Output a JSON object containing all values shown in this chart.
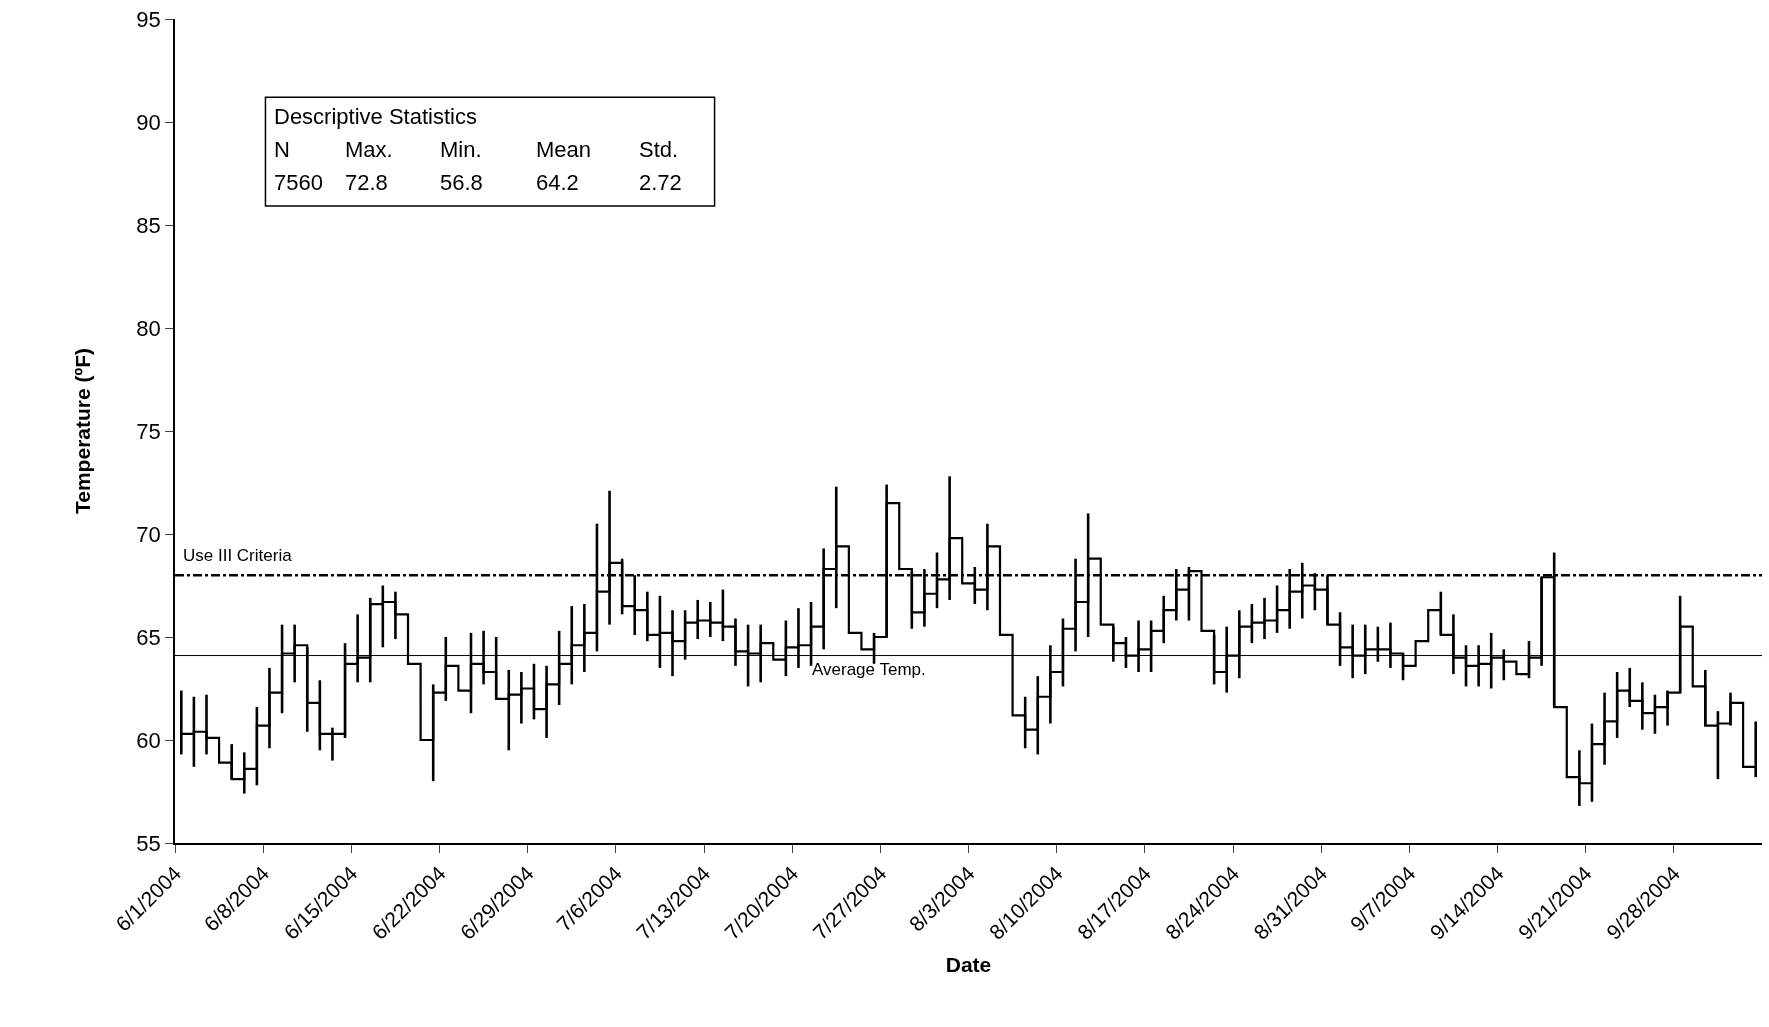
{
  "chart_data": {
    "type": "step",
    "xlabel": "Date",
    "ylabel": "Temperature (ºF)",
    "xlim": [
      "2004-06-01",
      "2004-10-05"
    ],
    "xticks": [
      {
        "value": "2004-06-01",
        "label": "6/1/2004"
      },
      {
        "value": "2004-06-08",
        "label": "6/8/2004"
      },
      {
        "value": "2004-06-15",
        "label": "6/15/2004"
      },
      {
        "value": "2004-06-22",
        "label": "6/22/2004"
      },
      {
        "value": "2004-06-29",
        "label": "6/29/2004"
      },
      {
        "value": "2004-07-06",
        "label": "7/6/2004"
      },
      {
        "value": "2004-07-13",
        "label": "7/13/2004"
      },
      {
        "value": "2004-07-20",
        "label": "7/20/2004"
      },
      {
        "value": "2004-07-27",
        "label": "7/27/2004"
      },
      {
        "value": "2004-08-03",
        "label": "8/3/2004"
      },
      {
        "value": "2004-08-10",
        "label": "8/10/2004"
      },
      {
        "value": "2004-08-17",
        "label": "8/17/2004"
      },
      {
        "value": "2004-08-24",
        "label": "8/24/2004"
      },
      {
        "value": "2004-08-31",
        "label": "8/31/2004"
      },
      {
        "value": "2004-09-07",
        "label": "9/7/2004"
      },
      {
        "value": "2004-09-14",
        "label": "9/14/2004"
      },
      {
        "value": "2004-09-21",
        "label": "9/21/2004"
      },
      {
        "value": "2004-09-28",
        "label": "9/28/2004"
      }
    ],
    "ylim": [
      55,
      95
    ],
    "yticks": [
      55,
      60,
      65,
      70,
      75,
      80,
      85,
      90,
      95
    ],
    "marker": "none",
    "line_style": "solid",
    "series": [
      {
        "color": "#000000",
        "x": [
          "2004-06-01T12:00",
          "2004-06-02T12:00",
          "2004-06-03T12:00",
          "2004-06-04T12:00",
          "2004-06-05T12:00",
          "2004-06-06T12:00",
          "2004-06-07T12:00",
          "2004-06-08T12:00",
          "2004-06-09T12:00",
          "2004-06-10T12:00",
          "2004-06-11T12:00",
          "2004-06-12T12:00",
          "2004-06-13T12:00",
          "2004-06-14T12:00",
          "2004-06-15T12:00",
          "2004-06-16T12:00",
          "2004-06-17T12:00",
          "2004-06-18T12:00",
          "2004-06-19T12:00",
          "2004-06-20T12:00",
          "2004-06-21T12:00",
          "2004-06-22T12:00",
          "2004-06-23T12:00",
          "2004-06-24T12:00",
          "2004-06-25T12:00",
          "2004-06-26T12:00",
          "2004-06-27T12:00",
          "2004-06-28T12:00",
          "2004-06-29T12:00",
          "2004-06-30T12:00",
          "2004-07-01T12:00",
          "2004-07-02T12:00",
          "2004-07-03T12:00",
          "2004-07-04T12:00",
          "2004-07-05T12:00",
          "2004-07-06T12:00",
          "2004-07-07T12:00",
          "2004-07-08T12:00",
          "2004-07-09T12:00",
          "2004-07-10T12:00",
          "2004-07-11T12:00",
          "2004-07-12T12:00",
          "2004-07-13T12:00",
          "2004-07-14T12:00",
          "2004-07-15T12:00",
          "2004-07-16T12:00",
          "2004-07-17T12:00",
          "2004-07-18T12:00",
          "2004-07-19T12:00",
          "2004-07-20T12:00",
          "2004-07-21T12:00",
          "2004-07-22T12:00",
          "2004-07-23T12:00",
          "2004-07-24T12:00",
          "2004-07-25T12:00",
          "2004-07-26T12:00",
          "2004-07-27T12:00",
          "2004-07-28T12:00",
          "2004-07-29T12:00",
          "2004-07-30T12:00",
          "2004-07-31T12:00",
          "2004-08-01T12:00",
          "2004-08-02T12:00",
          "2004-08-03T12:00",
          "2004-08-04T12:00",
          "2004-08-05T12:00",
          "2004-08-06T12:00",
          "2004-08-07T12:00",
          "2004-08-08T12:00",
          "2004-08-09T12:00",
          "2004-08-10T12:00",
          "2004-08-11T12:00",
          "2004-08-12T12:00",
          "2004-08-13T12:00",
          "2004-08-14T12:00",
          "2004-08-15T12:00",
          "2004-08-16T12:00",
          "2004-08-17T12:00",
          "2004-08-18T12:00",
          "2004-08-19T12:00",
          "2004-08-20T12:00",
          "2004-08-21T12:00",
          "2004-08-22T12:00",
          "2004-08-23T12:00",
          "2004-08-24T12:00",
          "2004-08-25T12:00",
          "2004-08-26T12:00",
          "2004-08-27T12:00",
          "2004-08-28T12:00",
          "2004-08-29T12:00",
          "2004-08-30T12:00",
          "2004-08-31T12:00",
          "2004-09-01T12:00",
          "2004-09-02T12:00",
          "2004-09-03T12:00",
          "2004-09-04T12:00",
          "2004-09-05T12:00",
          "2004-09-06T12:00",
          "2004-09-07T12:00",
          "2004-09-08T12:00",
          "2004-09-09T12:00",
          "2004-09-10T12:00",
          "2004-09-11T12:00",
          "2004-09-12T12:00",
          "2004-09-13T12:00",
          "2004-09-14T12:00",
          "2004-09-15T12:00",
          "2004-09-16T12:00",
          "2004-09-17T12:00",
          "2004-09-18T12:00",
          "2004-09-19T12:00",
          "2004-09-20T12:00",
          "2004-09-21T12:00",
          "2004-09-22T12:00",
          "2004-09-23T12:00",
          "2004-09-24T12:00",
          "2004-09-25T12:00",
          "2004-09-26T12:00",
          "2004-09-27T12:00",
          "2004-09-28T12:00",
          "2004-09-29T12:00",
          "2004-09-30T12:00",
          "2004-10-01T12:00",
          "2004-10-02T12:00",
          "2004-10-03T12:00",
          "2004-10-04T12:00"
        ],
        "values": [
          60.3,
          60.4,
          60.1,
          58.9,
          58.1,
          58.6,
          60.7,
          62.3,
          64.2,
          64.6,
          61.8,
          60.3,
          60.3,
          63.7,
          64.0,
          66.6,
          66.7,
          66.1,
          63.7,
          60.0,
          62.3,
          63.6,
          62.4,
          63.7,
          63.3,
          62.0,
          62.2,
          62.5,
          61.5,
          62.7,
          63.7,
          64.6,
          65.2,
          67.2,
          68.6,
          66.5,
          66.3,
          65.1,
          65.2,
          64.8,
          65.7,
          65.8,
          65.7,
          65.5,
          64.3,
          64.2,
          64.7,
          63.9,
          64.5,
          64.6,
          65.5,
          68.3,
          69.4,
          65.2,
          64.4,
          65.0,
          71.5,
          68.3,
          66.2,
          67.1,
          67.8,
          69.8,
          67.6,
          67.3,
          69.4,
          65.1,
          61.2,
          60.5,
          62.1,
          63.3,
          65.4,
          66.7,
          68.8,
          65.6,
          64.7,
          64.1,
          64.4,
          65.3,
          66.3,
          67.3,
          68.2,
          65.3,
          63.3,
          64.1,
          65.5,
          65.7,
          65.8,
          66.3,
          67.2,
          67.5,
          67.3,
          65.6,
          64.5,
          64.1,
          64.4,
          64.4,
          64.2,
          63.6,
          64.8,
          66.3,
          65.1,
          64.0,
          63.6,
          63.7,
          64.0,
          63.8,
          63.2,
          64.0,
          67.9,
          61.6,
          58.2,
          57.9,
          59.8,
          60.9,
          62.4,
          61.9,
          61.3,
          61.6,
          62.3,
          65.5,
          62.6,
          60.7,
          60.8,
          61.8,
          58.7,
          58.7
        ],
        "errors": [
          [
            59.3,
            62.4
          ],
          [
            58.7,
            62.1
          ],
          [
            59.3,
            62.2
          ],
          null,
          [
            58.1,
            59.8
          ],
          [
            57.4,
            59.4
          ],
          [
            57.8,
            61.6
          ],
          [
            59.6,
            63.5
          ],
          [
            61.3,
            65.6
          ],
          [
            62.8,
            65.6
          ],
          [
            60.4,
            64.5
          ],
          [
            59.5,
            62.9
          ],
          [
            59.0,
            60.6
          ],
          [
            60.1,
            64.7
          ],
          [
            62.8,
            66.1
          ],
          [
            62.8,
            66.9
          ],
          [
            64.5,
            67.5
          ],
          [
            64.9,
            67.2
          ],
          null,
          null,
          [
            58.0,
            62.7
          ],
          [
            61.9,
            65.0
          ],
          null,
          [
            61.3,
            65.2
          ],
          [
            62.7,
            65.3
          ],
          [
            62.0,
            65.0
          ],
          [
            59.5,
            63.4
          ],
          [
            60.8,
            63.3
          ],
          [
            61.0,
            63.7
          ],
          [
            60.1,
            63.6
          ],
          [
            61.7,
            65.3
          ],
          [
            62.7,
            66.5
          ],
          [
            63.3,
            66.6
          ],
          [
            64.3,
            70.5
          ],
          [
            65.6,
            72.1
          ],
          [
            66.1,
            68.8
          ],
          [
            65.1,
            68.0
          ],
          [
            64.8,
            67.2
          ],
          [
            63.5,
            67.0
          ],
          [
            63.1,
            66.3
          ],
          [
            63.9,
            66.3
          ],
          [
            64.9,
            66.8
          ],
          [
            65.0,
            66.7
          ],
          [
            64.8,
            67.3
          ],
          [
            63.6,
            65.9
          ],
          [
            62.6,
            65.6
          ],
          [
            62.8,
            65.6
          ],
          null,
          [
            63.1,
            65.8
          ],
          [
            63.5,
            66.4
          ],
          [
            63.6,
            66.7
          ],
          [
            64.4,
            69.3
          ],
          [
            66.4,
            72.3
          ],
          null,
          null,
          [
            63.7,
            65.2
          ],
          [
            65.0,
            72.4
          ],
          null,
          [
            65.4,
            68.2
          ],
          [
            65.5,
            68.3
          ],
          [
            66.4,
            69.1
          ],
          [
            66.8,
            72.8
          ],
          null,
          [
            66.6,
            68.4
          ],
          [
            66.3,
            70.5
          ],
          null,
          null,
          [
            59.6,
            62.1
          ],
          [
            59.3,
            63.1
          ],
          [
            60.8,
            64.6
          ],
          [
            62.6,
            65.9
          ],
          [
            64.3,
            68.8
          ],
          [
            65.0,
            71.0
          ],
          null,
          [
            63.8,
            65.5
          ],
          [
            63.5,
            65.0
          ],
          [
            63.3,
            65.8
          ],
          [
            63.3,
            65.8
          ],
          [
            64.7,
            67.0
          ],
          [
            65.8,
            68.3
          ],
          [
            65.8,
            68.4
          ],
          null,
          [
            62.7,
            65.1
          ],
          [
            62.3,
            65.5
          ],
          [
            63.0,
            66.3
          ],
          [
            64.7,
            66.6
          ],
          [
            64.9,
            66.9
          ],
          [
            65.2,
            67.5
          ],
          [
            65.4,
            68.3
          ],
          [
            65.9,
            68.6
          ],
          [
            66.3,
            68.1
          ],
          [
            65.6,
            68.0
          ],
          [
            63.6,
            66.2
          ],
          [
            63.0,
            65.6
          ],
          [
            63.2,
            65.6
          ],
          [
            63.8,
            65.5
          ],
          [
            63.5,
            65.7
          ],
          [
            62.9,
            64.2
          ],
          null,
          null,
          [
            65.1,
            67.2
          ],
          [
            63.2,
            66.1
          ],
          [
            62.6,
            64.6
          ],
          [
            62.6,
            64.6
          ],
          [
            62.5,
            65.2
          ],
          [
            62.9,
            64.4
          ],
          null,
          [
            63.0,
            64.8
          ],
          [
            63.6,
            67.9
          ],
          [
            61.6,
            69.1
          ],
          null,
          [
            56.8,
            59.5
          ],
          [
            57.0,
            60.8
          ],
          [
            58.8,
            62.3
          ],
          [
            60.1,
            63.3
          ],
          [
            61.6,
            63.5
          ],
          [
            60.5,
            62.8
          ],
          [
            60.3,
            62.2
          ],
          [
            60.7,
            62.4
          ],
          [
            62.3,
            67.0
          ],
          null,
          [
            60.7,
            63.4
          ],
          [
            58.1,
            61.4
          ],
          [
            60.7,
            62.3
          ],
          null,
          [
            58.2,
            60.9
          ]
        ]
      }
    ],
    "ref_lines": [
      {
        "axis": "y",
        "value": 68,
        "label": "Use III Criteria",
        "color": "#000000",
        "line_style": "dashdot"
      },
      {
        "axis": "y",
        "value": 64.1,
        "label": "Average Temp.",
        "color": "#000000",
        "line_style": "solid"
      }
    ],
    "annotations": [
      "Descriptive Statistics\nN\tMax.\tMin.\tMean\tStd.\n7560\t72.8\t56.8\t64.2\t2.72"
    ]
  }
}
